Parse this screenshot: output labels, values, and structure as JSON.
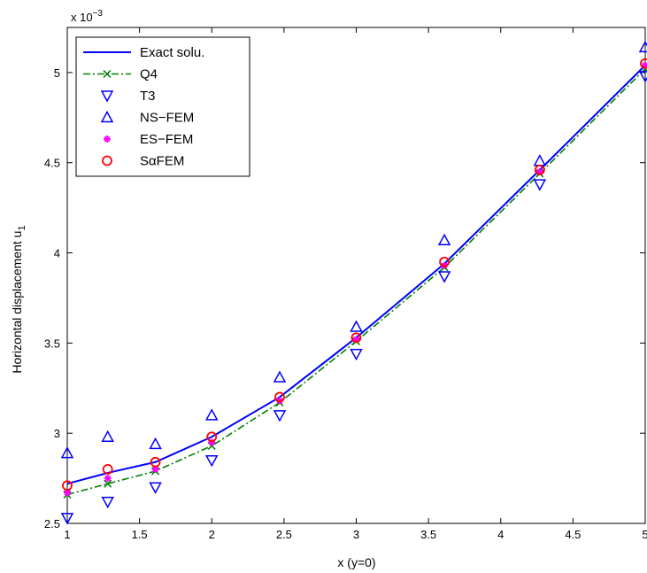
{
  "chart_data": {
    "type": "line",
    "xlabel": "x (y=0)",
    "ylabel": "Horizontal displacement u",
    "ylabel_sub": "1",
    "exponent_label": "x 10",
    "exponent_power": "−3",
    "xlim": [
      1,
      5
    ],
    "ylim": [
      2.5,
      5.25
    ],
    "x_ticks": [
      1,
      1.5,
      2,
      2.5,
      3,
      3.5,
      4,
      4.5,
      5
    ],
    "x_tick_labels": [
      "1",
      "1.5",
      "2",
      "2.5",
      "3",
      "3.5",
      "4",
      "4.5",
      "5"
    ],
    "y_ticks": [
      2.5,
      3,
      3.5,
      4,
      4.5,
      5
    ],
    "y_tick_labels": [
      "2.5",
      "3",
      "3.5",
      "4",
      "4.5",
      "5"
    ],
    "grid": false,
    "legend_position": "top-left",
    "x": [
      1,
      1.28,
      1.61,
      2,
      2.47,
      3,
      3.61,
      4.27,
      5
    ],
    "series": [
      {
        "name": "Exact solu.",
        "marker": "none",
        "line": "solid",
        "color": "#0000ff",
        "values": [
          2.72,
          2.78,
          2.84,
          2.98,
          3.2,
          3.53,
          3.94,
          4.46,
          5.04
        ]
      },
      {
        "name": "Q4",
        "marker": "x",
        "line": "dashdot",
        "color": "#008000",
        "values": [
          2.66,
          2.72,
          2.79,
          2.93,
          3.17,
          3.51,
          3.92,
          4.44,
          5.02
        ]
      },
      {
        "name": "T3",
        "marker": "triangle-down",
        "line": "none",
        "color": "#0000ff",
        "values": [
          2.53,
          2.62,
          2.7,
          2.85,
          3.1,
          3.44,
          3.87,
          4.38,
          4.98
        ]
      },
      {
        "name": "NS−FEM",
        "marker": "triangle-up",
        "line": "none",
        "color": "#0000ff",
        "values": [
          2.89,
          2.98,
          2.94,
          3.1,
          3.31,
          3.59,
          4.07,
          4.51,
          5.14
        ]
      },
      {
        "name": "ES−FEM",
        "marker": "star",
        "line": "none",
        "color": "#ff00ff",
        "values": [
          2.67,
          2.75,
          2.8,
          2.95,
          3.18,
          3.52,
          3.93,
          4.45,
          5.04
        ]
      },
      {
        "name": "SαFEM",
        "marker": "circle",
        "line": "none",
        "color": "#ff0000",
        "values": [
          2.71,
          2.8,
          2.84,
          2.98,
          3.2,
          3.53,
          3.95,
          4.46,
          5.05
        ]
      }
    ]
  }
}
